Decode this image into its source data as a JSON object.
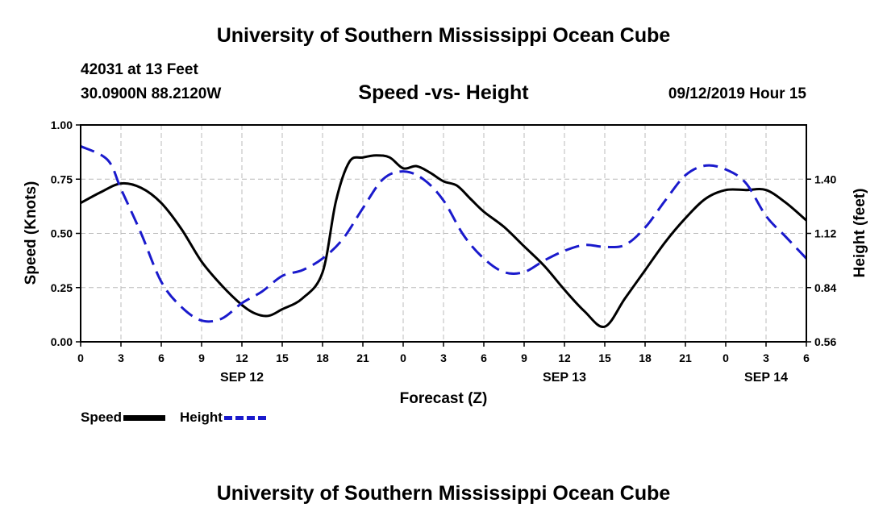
{
  "header": {
    "title_top": "University of Southern Mississippi Ocean Cube",
    "title_bottom": "University of Southern Mississippi Ocean Cube",
    "station": "42031 at 13 Feet",
    "coords": "30.0900N 88.2120W",
    "datetime": "09/12/2019 Hour 15"
  },
  "legend": {
    "speed_label": "Speed",
    "height_label": "Height"
  },
  "chart_data": {
    "type": "line",
    "title": "Speed -vs- Height",
    "xlabel": "Forecast (Z)",
    "ylabel": "Speed (Knots)",
    "y2label": "Height (feet)",
    "x_range_hours": [
      0,
      54
    ],
    "x_tick_step_hours": 3,
    "x_tick_labels": [
      "0",
      "3",
      "6",
      "9",
      "12",
      "15",
      "18",
      "21",
      "0",
      "3",
      "6",
      "9",
      "12",
      "15",
      "18",
      "21",
      "0",
      "3",
      "6"
    ],
    "date_labels": [
      {
        "label": "SEP 12",
        "hour": 12
      },
      {
        "label": "SEP 13",
        "hour": 36
      },
      {
        "label": "SEP 14",
        "hour": 51
      }
    ],
    "ylim": [
      0,
      1.0
    ],
    "y_ticks": [
      "0.00",
      "0.25",
      "0.50",
      "0.75",
      "1.00"
    ],
    "y2lim": [
      0.56,
      1.68
    ],
    "y2_ticks": [
      "0.56",
      "0.84",
      "1.12",
      "1.40"
    ],
    "grid": true,
    "colors": {
      "speed": "#000000",
      "height": "#1a1acc",
      "grid": "#bbbbbb"
    },
    "series": [
      {
        "name": "Speed",
        "axis": "left",
        "x": [
          0,
          1.5,
          3,
          4.5,
          6,
          7.5,
          9,
          10.5,
          12,
          13,
          14,
          15,
          16.5,
          18,
          19,
          20,
          21,
          22,
          23,
          24,
          25,
          26,
          27,
          28,
          29,
          30,
          31.5,
          33,
          34.5,
          36,
          37.5,
          39,
          40.5,
          42,
          43.5,
          45,
          46.5,
          48,
          49.5,
          51,
          52.5,
          54
        ],
        "values": [
          0.64,
          0.69,
          0.73,
          0.71,
          0.64,
          0.52,
          0.37,
          0.26,
          0.17,
          0.13,
          0.12,
          0.15,
          0.2,
          0.32,
          0.65,
          0.83,
          0.85,
          0.86,
          0.85,
          0.8,
          0.81,
          0.78,
          0.74,
          0.72,
          0.66,
          0.6,
          0.53,
          0.44,
          0.35,
          0.24,
          0.14,
          0.07,
          0.2,
          0.33,
          0.46,
          0.57,
          0.66,
          0.7,
          0.7,
          0.7,
          0.64,
          0.56
        ]
      },
      {
        "name": "Height",
        "axis": "right",
        "x": [
          0,
          2,
          3,
          4.5,
          6,
          7.5,
          9,
          10.5,
          12,
          13.5,
          15,
          16.5,
          18,
          19.5,
          21,
          22.5,
          24,
          25.5,
          27,
          28.5,
          30,
          31.5,
          33,
          34.5,
          36,
          37.5,
          39,
          40.5,
          42,
          43.5,
          45,
          46.5,
          48,
          49.5,
          51,
          52.5,
          54
        ],
        "values": [
          1.57,
          1.5,
          1.35,
          1.12,
          0.87,
          0.74,
          0.67,
          0.68,
          0.76,
          0.82,
          0.9,
          0.93,
          0.99,
          1.09,
          1.25,
          1.4,
          1.44,
          1.4,
          1.29,
          1.11,
          0.99,
          0.92,
          0.92,
          0.98,
          1.03,
          1.06,
          1.05,
          1.06,
          1.15,
          1.29,
          1.42,
          1.47,
          1.45,
          1.38,
          1.21,
          1.1,
          0.99
        ]
      }
    ]
  }
}
